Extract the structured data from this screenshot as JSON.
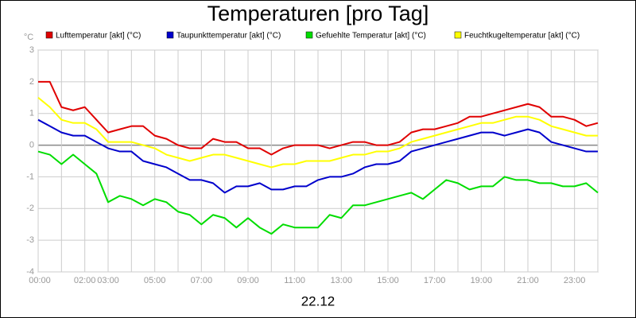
{
  "chart_data": {
    "type": "line",
    "title": "Temperaturen [pro Tag]",
    "xlabel": "22.12",
    "ylabel": "°C",
    "x": [
      0,
      0.5,
      1,
      1.5,
      2,
      2.5,
      3,
      3.5,
      4,
      4.5,
      5,
      5.5,
      6,
      6.5,
      7,
      7.5,
      8,
      8.5,
      9,
      9.5,
      10,
      10.5,
      11,
      11.5,
      12,
      12.5,
      13,
      13.5,
      14,
      14.5,
      15,
      15.5,
      16,
      16.5,
      17,
      17.5,
      18,
      18.5,
      19,
      19.5,
      20,
      20.5,
      21,
      21.5,
      22,
      22.5,
      23,
      23.5,
      24
    ],
    "series": [
      {
        "name": "Lufttemperatur [akt] (°C)",
        "color": "#e00000",
        "values": [
          2.0,
          2.0,
          1.2,
          1.1,
          1.2,
          0.8,
          0.4,
          0.5,
          0.6,
          0.6,
          0.3,
          0.2,
          0.0,
          -0.1,
          -0.1,
          0.2,
          0.1,
          0.1,
          -0.1,
          -0.1,
          -0.3,
          -0.1,
          0.0,
          0.0,
          0.0,
          -0.1,
          0.0,
          0.1,
          0.1,
          0.0,
          0.0,
          0.1,
          0.4,
          0.5,
          0.5,
          0.6,
          0.7,
          0.9,
          0.9,
          1.0,
          1.1,
          1.2,
          1.3,
          1.2,
          0.9,
          0.9,
          0.8,
          0.6,
          0.7
        ]
      },
      {
        "name": "Taupunkttemperatur [akt] (°C)",
        "color": "#0000cc",
        "values": [
          0.8,
          0.6,
          0.4,
          0.3,
          0.3,
          0.1,
          -0.1,
          -0.2,
          -0.2,
          -0.5,
          -0.6,
          -0.7,
          -0.9,
          -1.1,
          -1.1,
          -1.2,
          -1.5,
          -1.3,
          -1.3,
          -1.2,
          -1.4,
          -1.4,
          -1.3,
          -1.3,
          -1.1,
          -1.0,
          -1.0,
          -0.9,
          -0.7,
          -0.6,
          -0.6,
          -0.5,
          -0.2,
          -0.1,
          0.0,
          0.1,
          0.2,
          0.3,
          0.4,
          0.4,
          0.3,
          0.4,
          0.5,
          0.4,
          0.1,
          0.0,
          -0.1,
          -0.2,
          -0.2
        ]
      },
      {
        "name": "Gefuehlte Temperatur [akt] (°C)",
        "color": "#00dd00",
        "values": [
          -0.2,
          -0.3,
          -0.6,
          -0.3,
          -0.6,
          -0.9,
          -1.8,
          -1.6,
          -1.7,
          -1.9,
          -1.7,
          -1.8,
          -2.1,
          -2.2,
          -2.5,
          -2.2,
          -2.3,
          -2.6,
          -2.3,
          -2.6,
          -2.8,
          -2.5,
          -2.6,
          -2.6,
          -2.6,
          -2.2,
          -2.3,
          -1.9,
          -1.9,
          -1.8,
          -1.7,
          -1.6,
          -1.5,
          -1.7,
          -1.4,
          -1.1,
          -1.2,
          -1.4,
          -1.3,
          -1.3,
          -1.0,
          -1.1,
          -1.1,
          -1.2,
          -1.2,
          -1.3,
          -1.3,
          -1.2,
          -1.5
        ]
      },
      {
        "name": "Feuchtkugeltemperatur [akt] (°C)",
        "color": "#ffff00",
        "values": [
          1.5,
          1.2,
          0.8,
          0.7,
          0.7,
          0.5,
          0.1,
          0.1,
          0.1,
          0.0,
          -0.1,
          -0.3,
          -0.4,
          -0.5,
          -0.4,
          -0.3,
          -0.3,
          -0.4,
          -0.5,
          -0.6,
          -0.7,
          -0.6,
          -0.6,
          -0.5,
          -0.5,
          -0.5,
          -0.4,
          -0.3,
          -0.3,
          -0.2,
          -0.2,
          -0.1,
          0.1,
          0.2,
          0.3,
          0.4,
          0.5,
          0.6,
          0.7,
          0.7,
          0.8,
          0.9,
          0.9,
          0.8,
          0.6,
          0.5,
          0.4,
          0.3,
          0.3
        ]
      }
    ],
    "xlim": [
      0,
      24
    ],
    "xticks": [
      {
        "value": 0,
        "label": "00:00"
      },
      {
        "value": 2,
        "label": "02:00"
      },
      {
        "value": 3,
        "label": "03:00"
      },
      {
        "value": 5,
        "label": "05:00"
      },
      {
        "value": 7,
        "label": "07:00"
      },
      {
        "value": 9,
        "label": "09:00"
      },
      {
        "value": 11,
        "label": "11:00"
      },
      {
        "value": 13,
        "label": "13:00"
      },
      {
        "value": 15,
        "label": "15:00"
      },
      {
        "value": 17,
        "label": "17:00"
      },
      {
        "value": 19,
        "label": "19:00"
      },
      {
        "value": 21,
        "label": "21:00"
      },
      {
        "value": 23,
        "label": "23:00"
      }
    ],
    "x_minor_ticks": [
      1,
      4,
      6,
      8,
      10,
      12,
      14,
      16,
      18,
      20,
      22,
      24
    ],
    "ylim": [
      -4,
      3
    ],
    "yticks": [
      -4,
      -3,
      -2,
      -1,
      0,
      1,
      2,
      3
    ],
    "grid": true,
    "legend": "top"
  }
}
